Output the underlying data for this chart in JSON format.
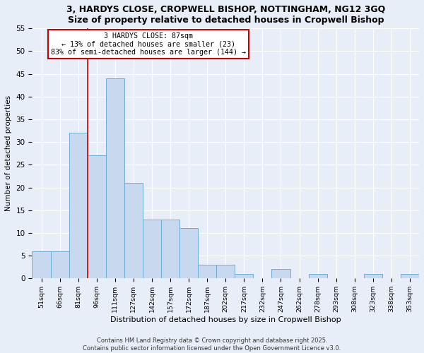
{
  "title": "3, HARDYS CLOSE, CROPWELL BISHOP, NOTTINGHAM, NG12 3GQ",
  "subtitle": "Size of property relative to detached houses in Cropwell Bishop",
  "xlabel": "Distribution of detached houses by size in Cropwell Bishop",
  "ylabel": "Number of detached properties",
  "bin_labels": [
    "51sqm",
    "66sqm",
    "81sqm",
    "96sqm",
    "111sqm",
    "127sqm",
    "142sqm",
    "157sqm",
    "172sqm",
    "187sqm",
    "202sqm",
    "217sqm",
    "232sqm",
    "247sqm",
    "262sqm",
    "278sqm",
    "293sqm",
    "308sqm",
    "323sqm",
    "338sqm",
    "353sqm"
  ],
  "bar_values": [
    6,
    6,
    32,
    27,
    44,
    21,
    13,
    13,
    11,
    3,
    3,
    1,
    0,
    2,
    0,
    1,
    0,
    0,
    1,
    0,
    1
  ],
  "ylim": [
    0,
    55
  ],
  "yticks": [
    0,
    5,
    10,
    15,
    20,
    25,
    30,
    35,
    40,
    45,
    50,
    55
  ],
  "bar_color": "#c8d8ef",
  "bar_edge_color": "#6baed6",
  "vline_color": "#cc0000",
  "annotation_title": "3 HARDYS CLOSE: 87sqm",
  "annotation_line1": "← 13% of detached houses are smaller (23)",
  "annotation_line2": "83% of semi-detached houses are larger (144) →",
  "annotation_box_color": "white",
  "annotation_box_edge": "#cc0000",
  "footer_line1": "Contains HM Land Registry data © Crown copyright and database right 2025.",
  "footer_line2": "Contains public sector information licensed under the Open Government Licence v3.0.",
  "background_color": "#e8eef8",
  "grid_color": "white"
}
